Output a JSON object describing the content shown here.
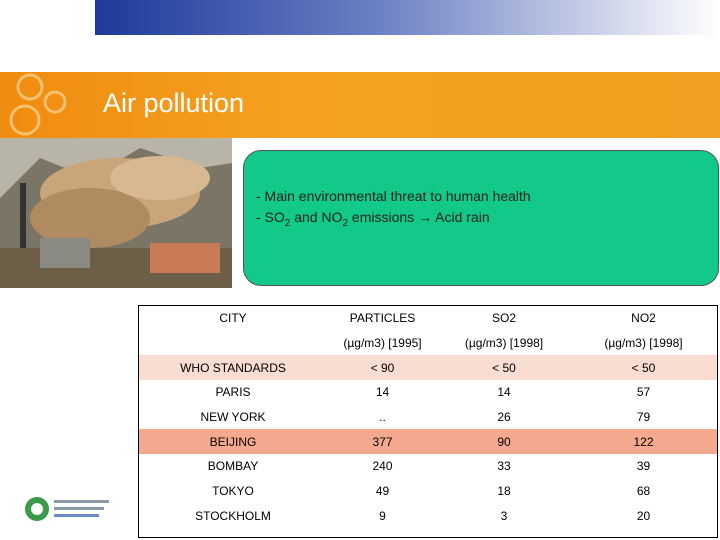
{
  "header": {
    "title": "Air pollution"
  },
  "callout": {
    "line1": "- Main environmental threat to human health",
    "line2": [
      "- SO",
      "2",
      " and NO",
      "2",
      " emissions → Acid rain"
    ]
  },
  "table": {
    "columns": [
      "CITY",
      "PARTICLES",
      "SO2",
      "NO2"
    ],
    "units": [
      "(µg/m3) [1995]",
      "(µg/m3) [1998]",
      "(µg/m3) [1998]"
    ],
    "rows": [
      [
        "WHO STANDARDS",
        "< 90",
        "< 50",
        "< 50"
      ],
      [
        "PARIS",
        "14",
        "14",
        "57"
      ],
      [
        "NEW YORK",
        "..",
        "26",
        "79"
      ],
      [
        "BEIJING",
        "377",
        "90",
        "122"
      ],
      [
        "BOMBAY",
        "240",
        "33",
        "39"
      ],
      [
        "TOKYO",
        "49",
        "18",
        "68"
      ],
      [
        "STOCKHOLM",
        "9",
        "3",
        "20"
      ]
    ]
  }
}
